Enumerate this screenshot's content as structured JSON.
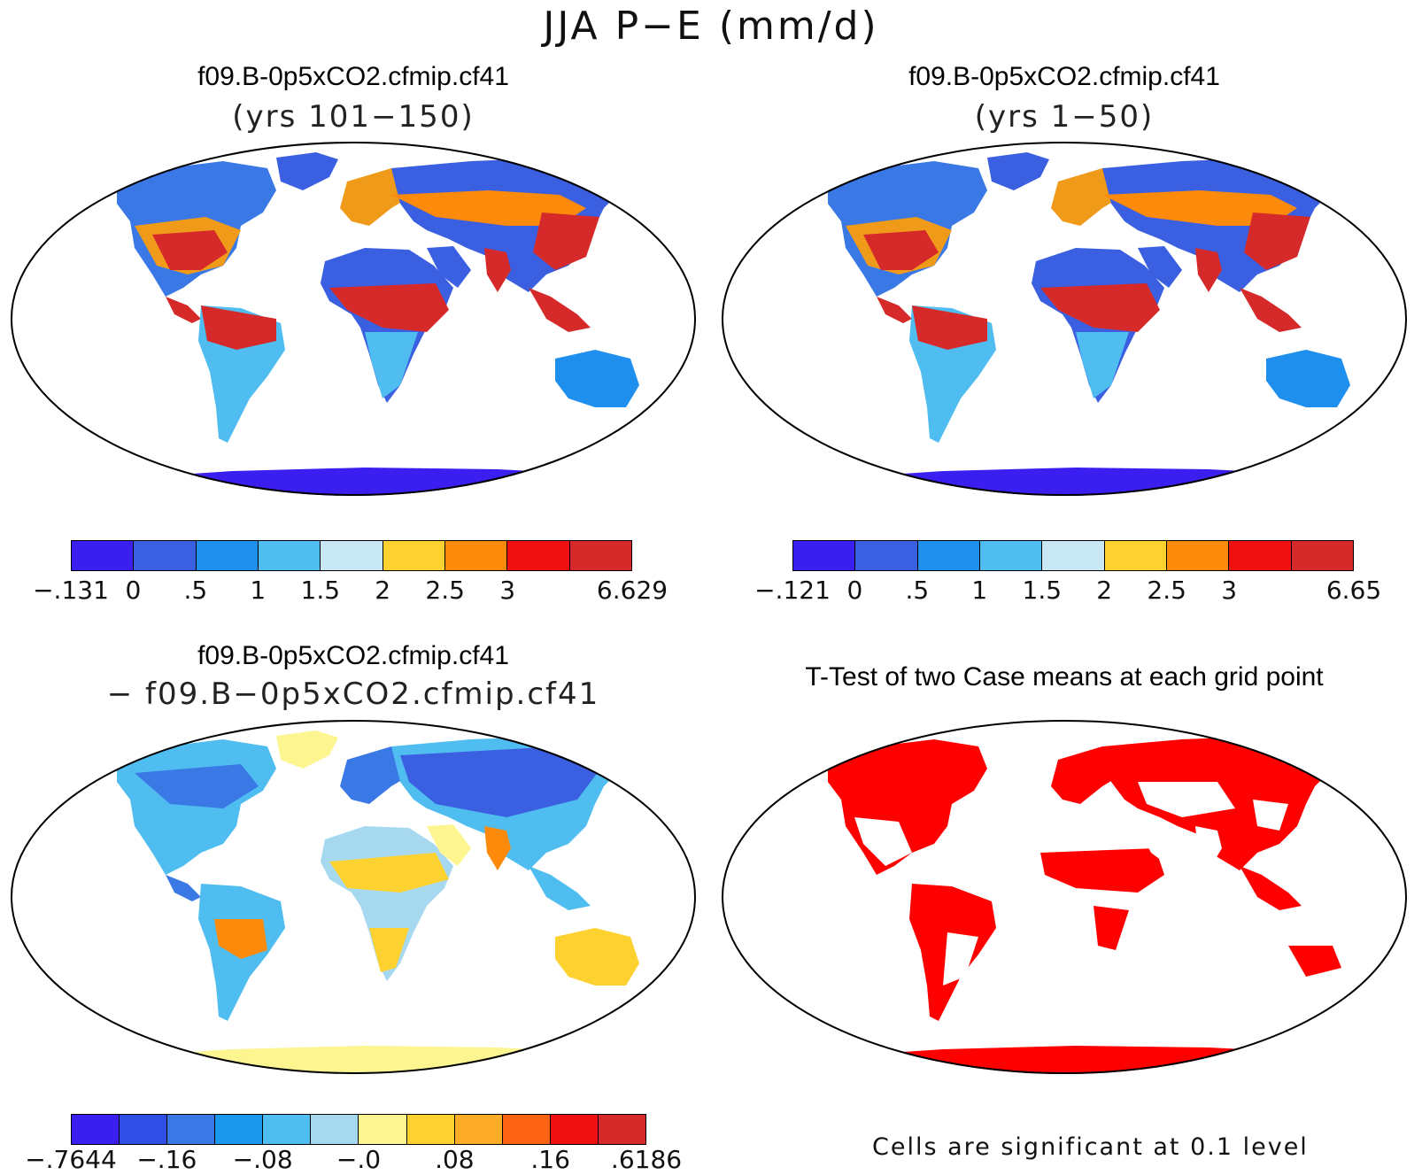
{
  "main_title": "JJA P−E (mm/d)",
  "panels": {
    "top_left": {
      "title_line1": "f09.B-0p5xCO2.cfmip.cf41",
      "title_line2": "(yrs 101−150)",
      "colorbar": {
        "colors": [
          "#3b1ff0",
          "#3a5fe0",
          "#1f8fee",
          "#4fbdf0",
          "#c9e8f6",
          "#fdd230",
          "#fd8a0b",
          "#f01010",
          "#d62a2a"
        ],
        "labels": [
          "−.131",
          "0",
          ".5",
          "1",
          "1.5",
          "2",
          "2.5",
          "3",
          "6.629"
        ]
      }
    },
    "top_right": {
      "title_line1": "f09.B-0p5xCO2.cfmip.cf41",
      "title_line2": "(yrs 1−50)",
      "colorbar": {
        "colors": [
          "#3b1ff0",
          "#3a5fe0",
          "#1f8fee",
          "#4fbdf0",
          "#c9e8f6",
          "#fdd230",
          "#fd8a0b",
          "#f01010",
          "#d62a2a"
        ],
        "labels": [
          "−.121",
          "0",
          ".5",
          "1",
          "1.5",
          "2",
          "2.5",
          "3",
          "6.65"
        ]
      }
    },
    "bottom_left": {
      "title_line1": "f09.B-0p5xCO2.cfmip.cf41",
      "title_line2": "− f09.B−0p5xCO2.cfmip.cf41",
      "colorbar": {
        "colors": [
          "#3b1ff0",
          "#2e4ee6",
          "#3a78e6",
          "#1b98ee",
          "#4fbdf0",
          "#a6d8f0",
          "#fdf590",
          "#fdd230",
          "#fdac28",
          "#fb6212",
          "#f01010",
          "#d62a2a"
        ],
        "labels": [
          "−.7644",
          "−.16",
          "−.08",
          "−.0",
          ".08",
          ".16",
          ".6186"
        ]
      }
    },
    "bottom_right": {
      "title": "T-Test of two Case means at each grid point",
      "note": "Cells are significant at 0.1 level",
      "significant_color": "#ff0000"
    }
  }
}
